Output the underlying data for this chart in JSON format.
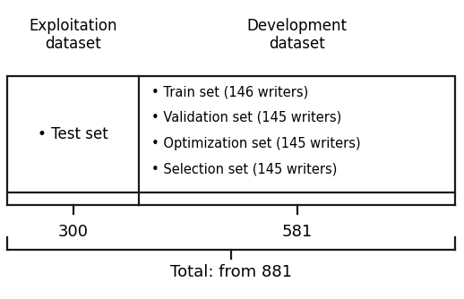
{
  "exploit_label": "Exploitation\ndataset",
  "develop_label": "Development\ndataset",
  "test_set_label": "• Test set",
  "dev_items": [
    "• Train set (146 writers)",
    "• Validation set (145 writers)",
    "• Optimization set (145 writers)",
    "• Selection set (145 writers)"
  ],
  "count_left": "300",
  "count_right": "581",
  "total_label": "Total: from 881",
  "box_color": "#1a1a1a",
  "text_color": "#000000",
  "bg_color": "#ffffff",
  "title_fontsize": 12,
  "body_fontsize": 10.5,
  "count_fontsize": 13,
  "lw": 1.6
}
